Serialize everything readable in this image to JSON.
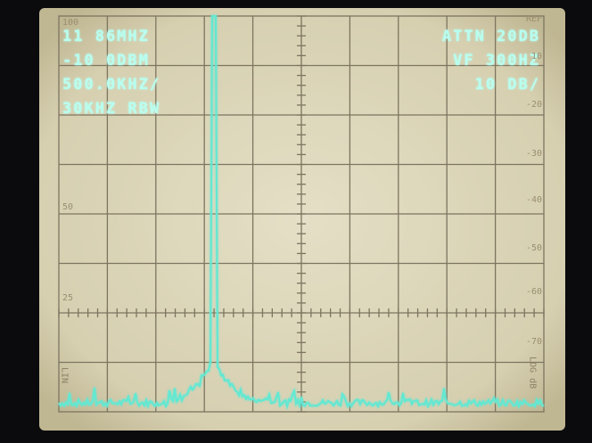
{
  "readout": {
    "left": [
      "11 86MHZ",
      "-10 0DBM",
      "500.0KHZ/",
      "30KHZ RBW"
    ],
    "right": [
      "ATTN 20DB",
      "VF 300HZ",
      "10 DB/"
    ]
  },
  "scale": {
    "left": [
      "100",
      "50",
      "25"
    ],
    "right": [
      "REF",
      "10",
      "-20",
      "-30",
      "-40",
      "-50",
      "-60",
      "-70"
    ]
  },
  "mode": {
    "lin": "LIN",
    "log": "LOG dB"
  }
}
